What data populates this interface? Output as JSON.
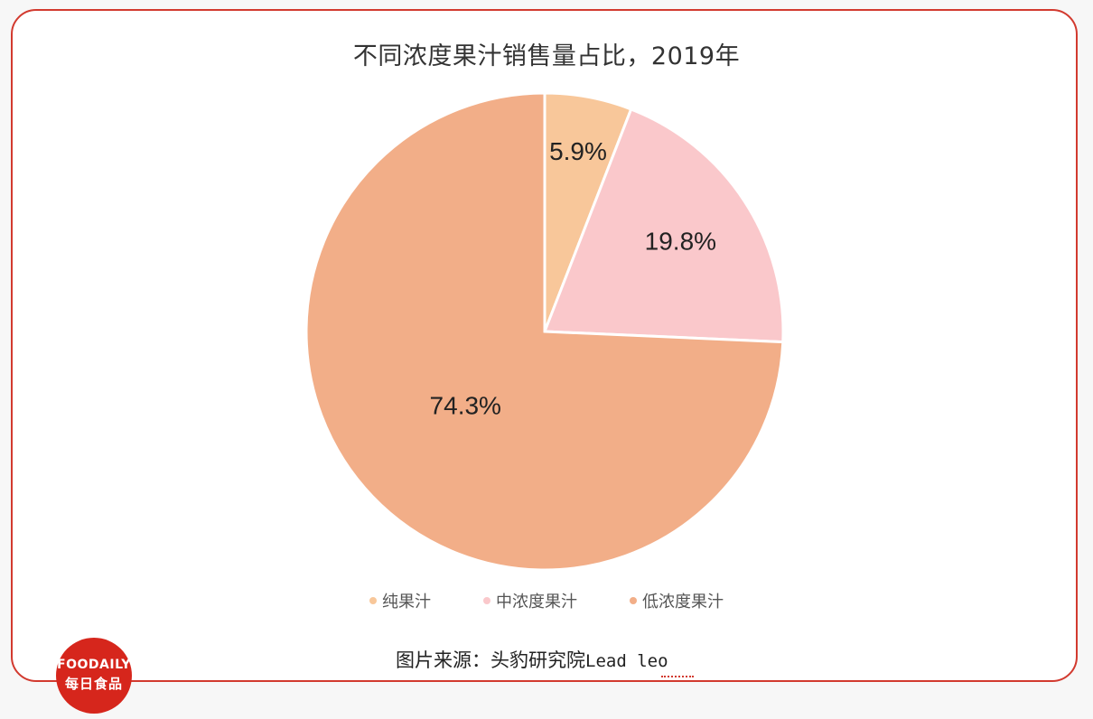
{
  "chart_data": {
    "type": "pie",
    "title": "不同浓度果汁销售量占比，2019年",
    "series": [
      {
        "name": "纯果汁",
        "value": 5.9,
        "label": "5.9%",
        "color": "#f8c79a"
      },
      {
        "name": "中浓度果汁",
        "value": 19.8,
        "label": "19.8%",
        "color": "#fac8cb"
      },
      {
        "name": "低浓度果汁",
        "value": 74.3,
        "label": "74.3%",
        "color": "#f2ae88"
      }
    ],
    "legend_position": "bottom",
    "start_angle": "12 o'clock",
    "direction": "clockwise"
  },
  "source": {
    "prefix": "图片来源：头豹研究院",
    "suffix": "Lead leo"
  },
  "logo": {
    "en": "FOODAILY",
    "cn": "每日食品"
  }
}
